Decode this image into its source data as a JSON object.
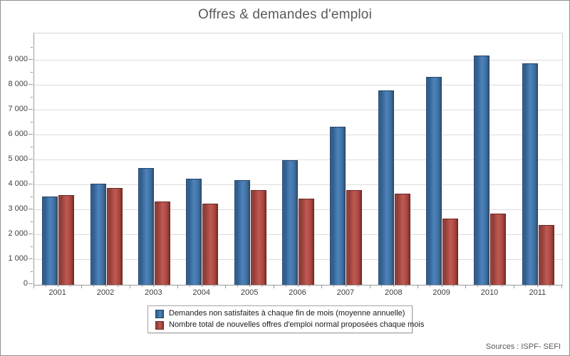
{
  "chart_data": {
    "type": "bar",
    "title": "Offres & demandes d'emploi",
    "categories": [
      "2001",
      "2002",
      "2003",
      "2004",
      "2005",
      "2006",
      "2007",
      "2008",
      "2009",
      "2010",
      "2011"
    ],
    "series": [
      {
        "name": "Demandes non satisfaites à chaque fin de mois (moyenne annuelle)",
        "color": "#3f6da0",
        "values": [
          3550,
          4050,
          4700,
          4250,
          4200,
          5000,
          6350,
          7800,
          8350,
          9200,
          8900
        ]
      },
      {
        "name": "Nombre total de nouvelles offres d'emploi normal proposées chaque mois",
        "color": "#b0473f",
        "values": [
          3600,
          3900,
          3350,
          3250,
          3800,
          3450,
          3800,
          3650,
          2650,
          2850,
          2400
        ]
      }
    ],
    "xlabel": "",
    "ylabel": "",
    "ylim": [
      0,
      10100
    ],
    "ytick_step": 1000,
    "ytick_minor_step": 500,
    "ytick_labels": [
      "0",
      "1 000",
      "2 000",
      "3 000",
      "4 000",
      "5 000",
      "6 000",
      "7 000",
      "8 000",
      "9 000"
    ],
    "grid": "horizontal-major",
    "legend_position": "bottom"
  },
  "footer": {
    "source_note": "Sources : ISPF- SEFI"
  }
}
